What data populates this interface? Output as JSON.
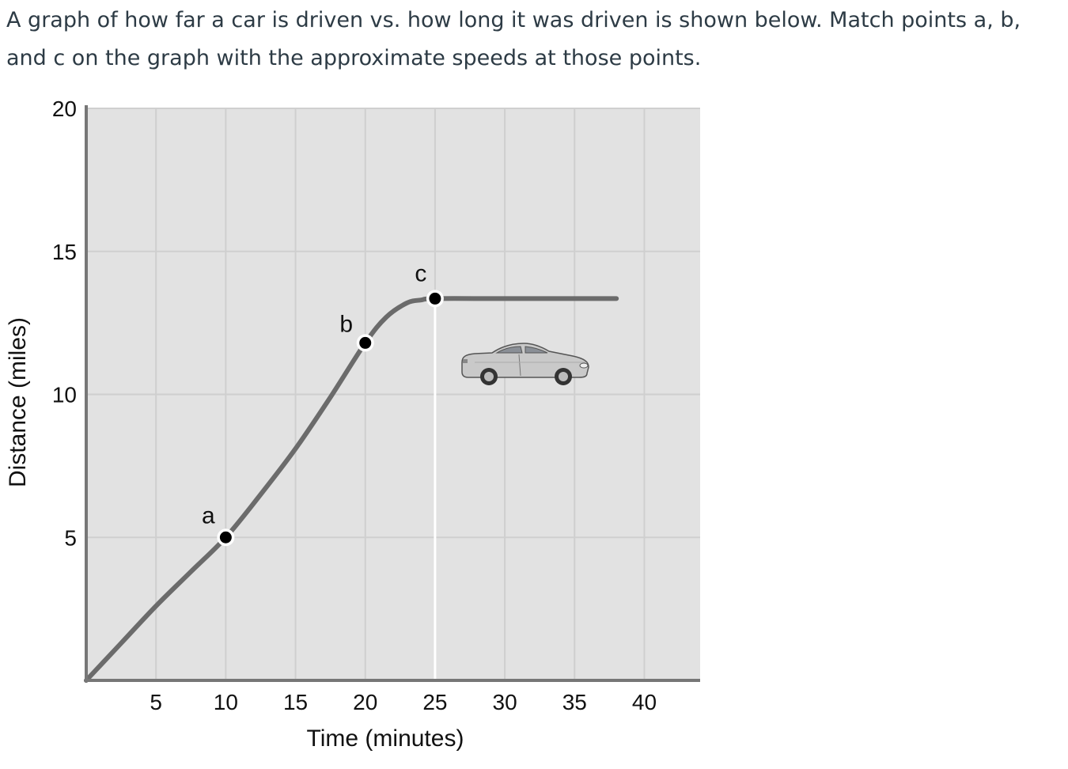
{
  "question_text": "A graph of how far a car is driven vs. how long it was driven is shown below.  Match points a, b, and c on the graph with the approximate speeds at those points.",
  "chart_data": {
    "type": "line",
    "title": "",
    "xlabel": "Time (minutes)",
    "ylabel": "Distance (miles)",
    "xlim": [
      0,
      44
    ],
    "ylim": [
      0,
      20
    ],
    "x_ticks": [
      5,
      10,
      15,
      20,
      25,
      30,
      35,
      40
    ],
    "y_ticks": [
      5,
      10,
      15,
      20
    ],
    "grid": true,
    "series": [
      {
        "x": [
          0,
          2.5,
          5,
          7.5,
          10,
          12.5,
          15,
          17.5,
          20,
          21.5,
          23,
          24,
          25,
          30,
          38
        ],
        "y": [
          0,
          1.3,
          2.6,
          3.8,
          5.0,
          6.5,
          8.1,
          9.9,
          11.8,
          12.7,
          13.2,
          13.3,
          13.35,
          13.35,
          13.35
        ]
      }
    ],
    "points": [
      {
        "label": "a",
        "x": 10,
        "y": 5.0
      },
      {
        "label": "b",
        "x": 20,
        "y": 11.8
      },
      {
        "label": "c",
        "x": 25,
        "y": 13.35
      }
    ],
    "reference_line_x": 25,
    "line_color": "#6b6b6b",
    "plot_bg": "#e2e2e2",
    "grid_color": "#cfcfcf",
    "icon": "car-icon"
  }
}
